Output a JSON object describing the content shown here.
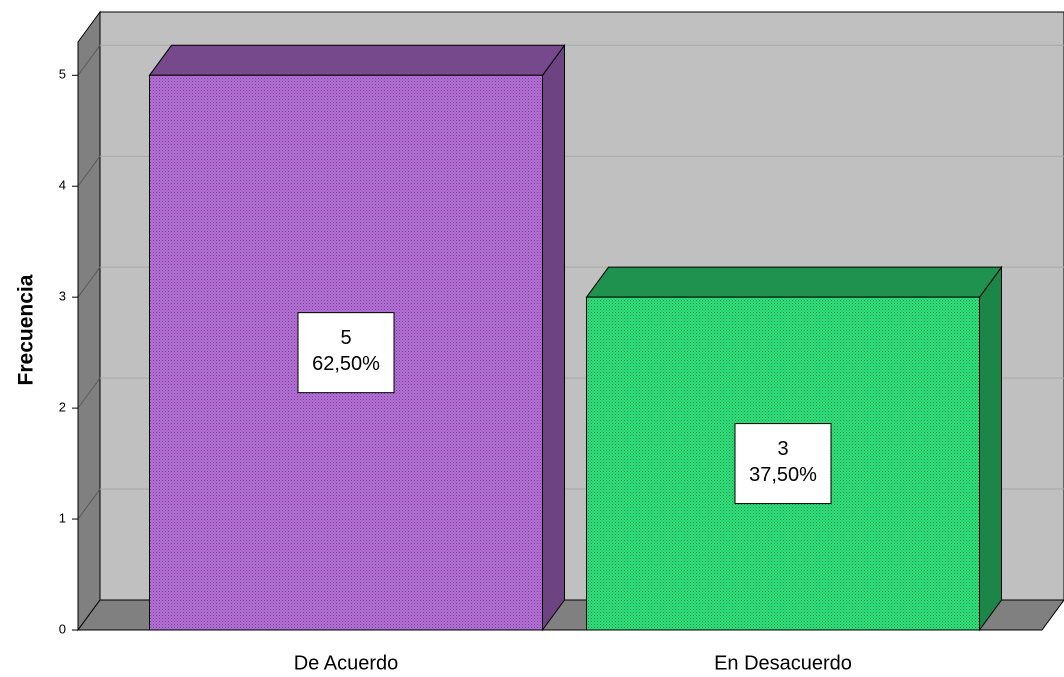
{
  "chart_data": {
    "type": "bar3d",
    "y_label": "Frecuencia",
    "categories": [
      "De Acuerdo",
      "En Desacuerdo"
    ],
    "values": [
      5,
      3
    ],
    "percentages": [
      62.5,
      37.5
    ],
    "percentage_labels": [
      "62,50%",
      "37,50%"
    ],
    "colors": [
      "#b56fd8",
      "#2fe07a"
    ],
    "ylim": [
      0,
      5.3
    ],
    "yticks": [
      0,
      1,
      2,
      3,
      4,
      5
    ],
    "grid": true
  }
}
